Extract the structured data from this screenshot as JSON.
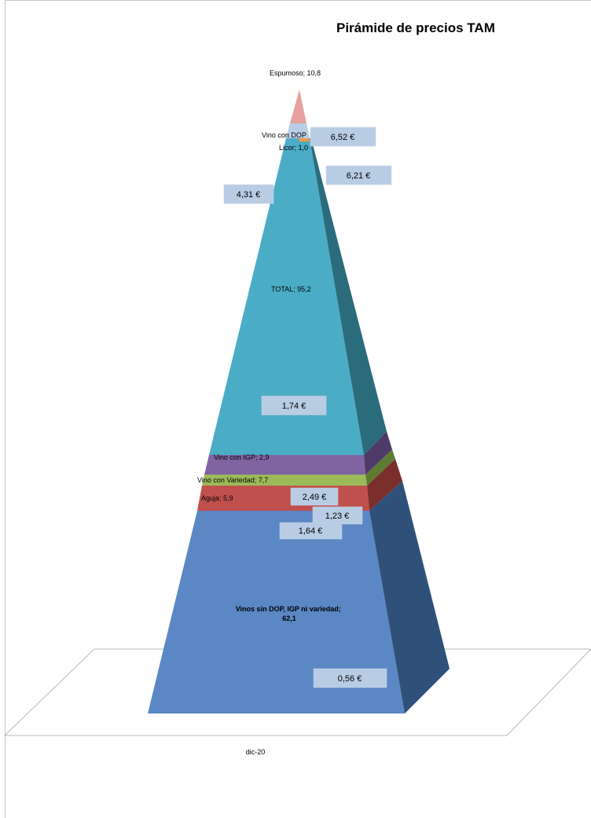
{
  "title": "Pirámide de precios TAM",
  "chart_data": {
    "type": "pyramid-3d",
    "title": "Pirámide de precios TAM",
    "categories": [
      "dic-20"
    ],
    "segments": [
      {
        "name": "Vinos sin DOP, IGP ni variedad",
        "value": 62.1,
        "label": "Vinos sin DOP, IGP ni variedad; 62,1",
        "price": "0,56 €",
        "color": "#5b87c5",
        "side_color": "#2f5078"
      },
      {
        "name": "Aguja",
        "value": 5.9,
        "label": "Aguja; 5,9",
        "price": "1,64 €",
        "color": "#c0504d",
        "side_color": "#7a2f2c"
      },
      {
        "name": "Vino con Variedad",
        "value": 7.7,
        "label": "Vino con Variedad; 7,7",
        "price": "1,23 €",
        "color": "#9bbb59",
        "side_color": "#5f7a32"
      },
      {
        "name": "Vino con IGP",
        "value": 2.9,
        "label": "Vino con IGP; 2,9",
        "price": "2,49 €",
        "color": "#8064a2",
        "side_color": "#4e3a68"
      },
      {
        "name": "TOTAL",
        "value": 95.2,
        "label": "TOTAL; 95,2",
        "price": "1,74 €",
        "color": "#4bacc6",
        "side_color": "#2a6b7c"
      },
      {
        "name": "Vino con DOP",
        "value": null,
        "label": "Vino con DOP",
        "price": "4,31 €",
        "color": "#b9cde5",
        "side_color": "#7f93a8"
      },
      {
        "name": "Licor",
        "value": 1.0,
        "label": "Licor; 1,0",
        "price": "6,21 €",
        "color": "#f79646",
        "side_color": "#a55f23"
      },
      {
        "name": "Espumoso",
        "value": 10.8,
        "label": "Espumoso; 10,8",
        "price": "6,52 €",
        "color": "#e6a0a0",
        "side_color": "#a86e6e"
      }
    ],
    "xlabel": "",
    "ylabel": "",
    "legend": "none",
    "grid": false
  }
}
